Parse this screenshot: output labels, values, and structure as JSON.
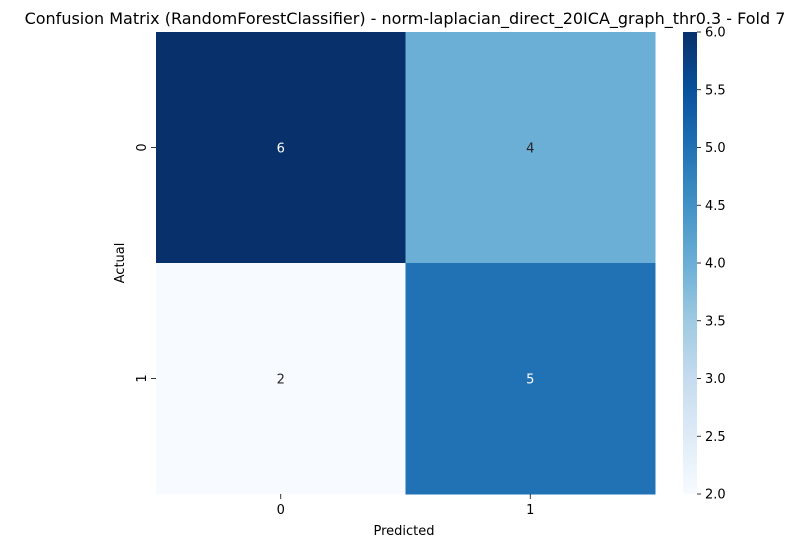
{
  "chart_data": {
    "type": "heatmap",
    "title": "Confusion Matrix (RandomForestClassifier) - norm-laplacian_direct_20ICA_graph_thr0.3 - Fold 7",
    "xlabel": "Predicted",
    "ylabel": "Actual",
    "x_categories": [
      "0",
      "1"
    ],
    "y_categories": [
      "0",
      "1"
    ],
    "values": [
      [
        6,
        4
      ],
      [
        2,
        5
      ]
    ],
    "value_labels": [
      [
        "6",
        "4"
      ],
      [
        "2",
        "5"
      ]
    ],
    "colormap": "Blues",
    "colorbar": {
      "range": [
        2.0,
        6.0
      ],
      "ticks": [
        "2.0",
        "2.5",
        "3.0",
        "3.5",
        "4.0",
        "4.5",
        "5.0",
        "5.5",
        "6.0"
      ]
    },
    "grid": false,
    "legend": "colorbar-right"
  },
  "colors": {
    "cell_6": "#08306b",
    "cell_5": "#2171b5",
    "cell_4": "#6baed6",
    "cell_2": "#f7fbff",
    "annotation_dark_bg": "#ffffff",
    "annotation_light_bg": "#262626",
    "text": "#000000"
  }
}
